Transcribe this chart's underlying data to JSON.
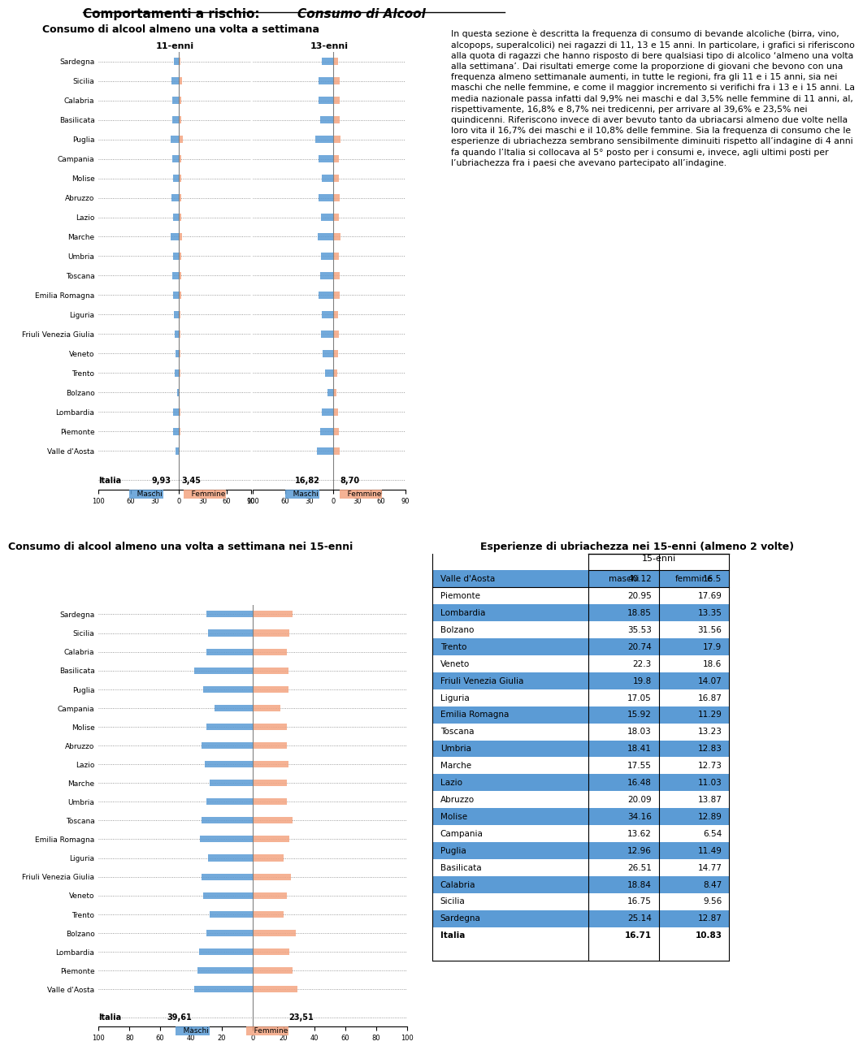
{
  "title_main": "Comportamenti a rischio: Consumo di Alcool",
  "regions": [
    "Valle d'Aosta",
    "Piemonte",
    "Lombardia",
    "Bolzano",
    "Trento",
    "Veneto",
    "Friuli Venezia Giulia",
    "Liguria",
    "Emilia Romagna",
    "Toscana",
    "Umbria",
    "Marche",
    "Lazio",
    "Abruzzo",
    "Molise",
    "Campania",
    "Puglia",
    "Basilicata",
    "Calabria",
    "Sicilia",
    "Sardegna"
  ],
  "chart1_title": "Consumo di alcool almeno una volta a settimana",
  "chart1_11_maschi": [
    3.5,
    7.0,
    6.5,
    2.0,
    4.5,
    4.0,
    5.0,
    5.5,
    7.0,
    7.5,
    6.5,
    9.5,
    7.0,
    8.5,
    6.5,
    8.0,
    10.5,
    7.5,
    8.0,
    8.5,
    5.5
  ],
  "chart1_11_femmine": [
    1.5,
    2.5,
    2.0,
    1.0,
    2.0,
    2.0,
    2.5,
    2.5,
    3.5,
    3.5,
    3.0,
    4.5,
    3.5,
    3.5,
    3.0,
    3.0,
    5.0,
    3.5,
    3.5,
    4.0,
    2.5
  ],
  "chart1_13_maschi": [
    20.0,
    16.0,
    14.5,
    7.5,
    10.5,
    13.5,
    15.0,
    14.0,
    18.0,
    16.0,
    15.5,
    19.0,
    15.0,
    18.5,
    14.5,
    18.0,
    22.0,
    16.5,
    18.5,
    18.0,
    14.0
  ],
  "chart1_13_femmine": [
    8.0,
    7.5,
    6.5,
    4.0,
    5.5,
    6.0,
    7.0,
    6.5,
    8.5,
    8.0,
    7.5,
    9.5,
    7.5,
    8.5,
    7.0,
    7.5,
    9.5,
    8.0,
    8.5,
    8.5,
    6.5
  ],
  "chart1_italia_11_m": 9.93,
  "chart1_italia_11_f": 3.45,
  "chart1_italia_13_m": 16.82,
  "chart1_italia_13_f": 8.7,
  "chart2_title": "Consumo di alcool almeno una volta a settimana nei 15-enni",
  "chart2_maschi": [
    38.0,
    36.0,
    35.0,
    30.0,
    28.0,
    32.0,
    33.0,
    29.0,
    34.0,
    33.0,
    30.0,
    28.0,
    31.0,
    33.0,
    30.0,
    25.0,
    32.0,
    38.0,
    30.0,
    29.0,
    30.0
  ],
  "chart2_femmine": [
    29.0,
    26.0,
    24.0,
    28.0,
    20.0,
    22.0,
    25.0,
    20.0,
    24.0,
    26.0,
    22.0,
    22.0,
    23.0,
    22.0,
    22.0,
    18.0,
    23.0,
    23.0,
    22.0,
    24.0,
    26.0
  ],
  "chart2_italia_m": 39.61,
  "chart2_italia_f": 23.51,
  "table_title": "Esperienze di ubriachezza nei 15-enni (almeno 2 volte)",
  "table_regions": [
    "Valle d'Aosta",
    "Piemonte",
    "Lombardia",
    "Bolzano",
    "Trento",
    "Veneto",
    "Friuli Venezia Giulia",
    "Liguria",
    "Emilia Romagna",
    "Toscana",
    "Umbria",
    "Marche",
    "Lazio",
    "Abruzzo",
    "Molise",
    "Campania",
    "Puglia",
    "Basilicata",
    "Calabria",
    "Sicilia",
    "Sardegna",
    "Italia"
  ],
  "table_maschi": [
    40.12,
    20.95,
    18.85,
    35.53,
    20.74,
    22.3,
    19.8,
    17.05,
    15.92,
    18.03,
    18.41,
    17.55,
    16.48,
    20.09,
    34.16,
    13.62,
    12.96,
    26.51,
    18.84,
    16.75,
    25.14,
    16.71
  ],
  "table_femmine": [
    16.5,
    17.69,
    13.35,
    31.56,
    17.9,
    18.6,
    14.07,
    16.87,
    11.29,
    13.23,
    12.83,
    12.73,
    11.03,
    13.87,
    12.89,
    6.54,
    11.49,
    14.77,
    8.47,
    9.56,
    12.87,
    10.83
  ],
  "table_highlighted_rows": [
    0,
    2,
    4,
    6,
    8,
    10,
    12,
    14,
    16,
    18,
    20
  ],
  "highlight_color": "#5B9BD5",
  "maschi_color": "#5B9BD5",
  "femmine_color": "#F4A582",
  "text_paragraph": "In questa sezione è descritta la frequenza di consumo di bevande alcoliche (birra, vino, alcopops, superalcolici) nei ragazzi di 11, 13 e 15 anni. In particolare, i grafici si riferiscono alla quota di ragazzi che hanno risposto di bere qualsiasi tipo di alcolico ‘almeno una volta alla settimana’. Dai risultati emerge come la proporzione di giovani che bevono con una frequenza almeno settimanale aumenti, in tutte le regioni, fra gli 11 e i 15 anni, sia nei maschi che nelle femmine, e come il maggior incremento si verifichi fra i 13 e i 15 anni. La media nazionale passa infatti dal 9,9% nei maschi e dal 3,5% nelle femmine di 11 anni, al, rispettivamente, 16,8% e 8,7% nei tredicenni, per arrivare al 39,6% e 23,5% nei quindicenni. Riferiscono invece di aver bevuto tanto da ubriacarsi almeno due volte nella loro vita il 16,7% dei maschi e il 10,8% delle femmine. Sia la frequenza di consumo che le esperienze di ubriachezza sembrano sensibilmente diminuiti rispetto all’indagine di 4 anni fa quando l’Italia si collocava al 5° posto per i consumi e, invece, agli ultimi posti per l’ubriachezza fra i paesi che avevano partecipato all’indagine."
}
